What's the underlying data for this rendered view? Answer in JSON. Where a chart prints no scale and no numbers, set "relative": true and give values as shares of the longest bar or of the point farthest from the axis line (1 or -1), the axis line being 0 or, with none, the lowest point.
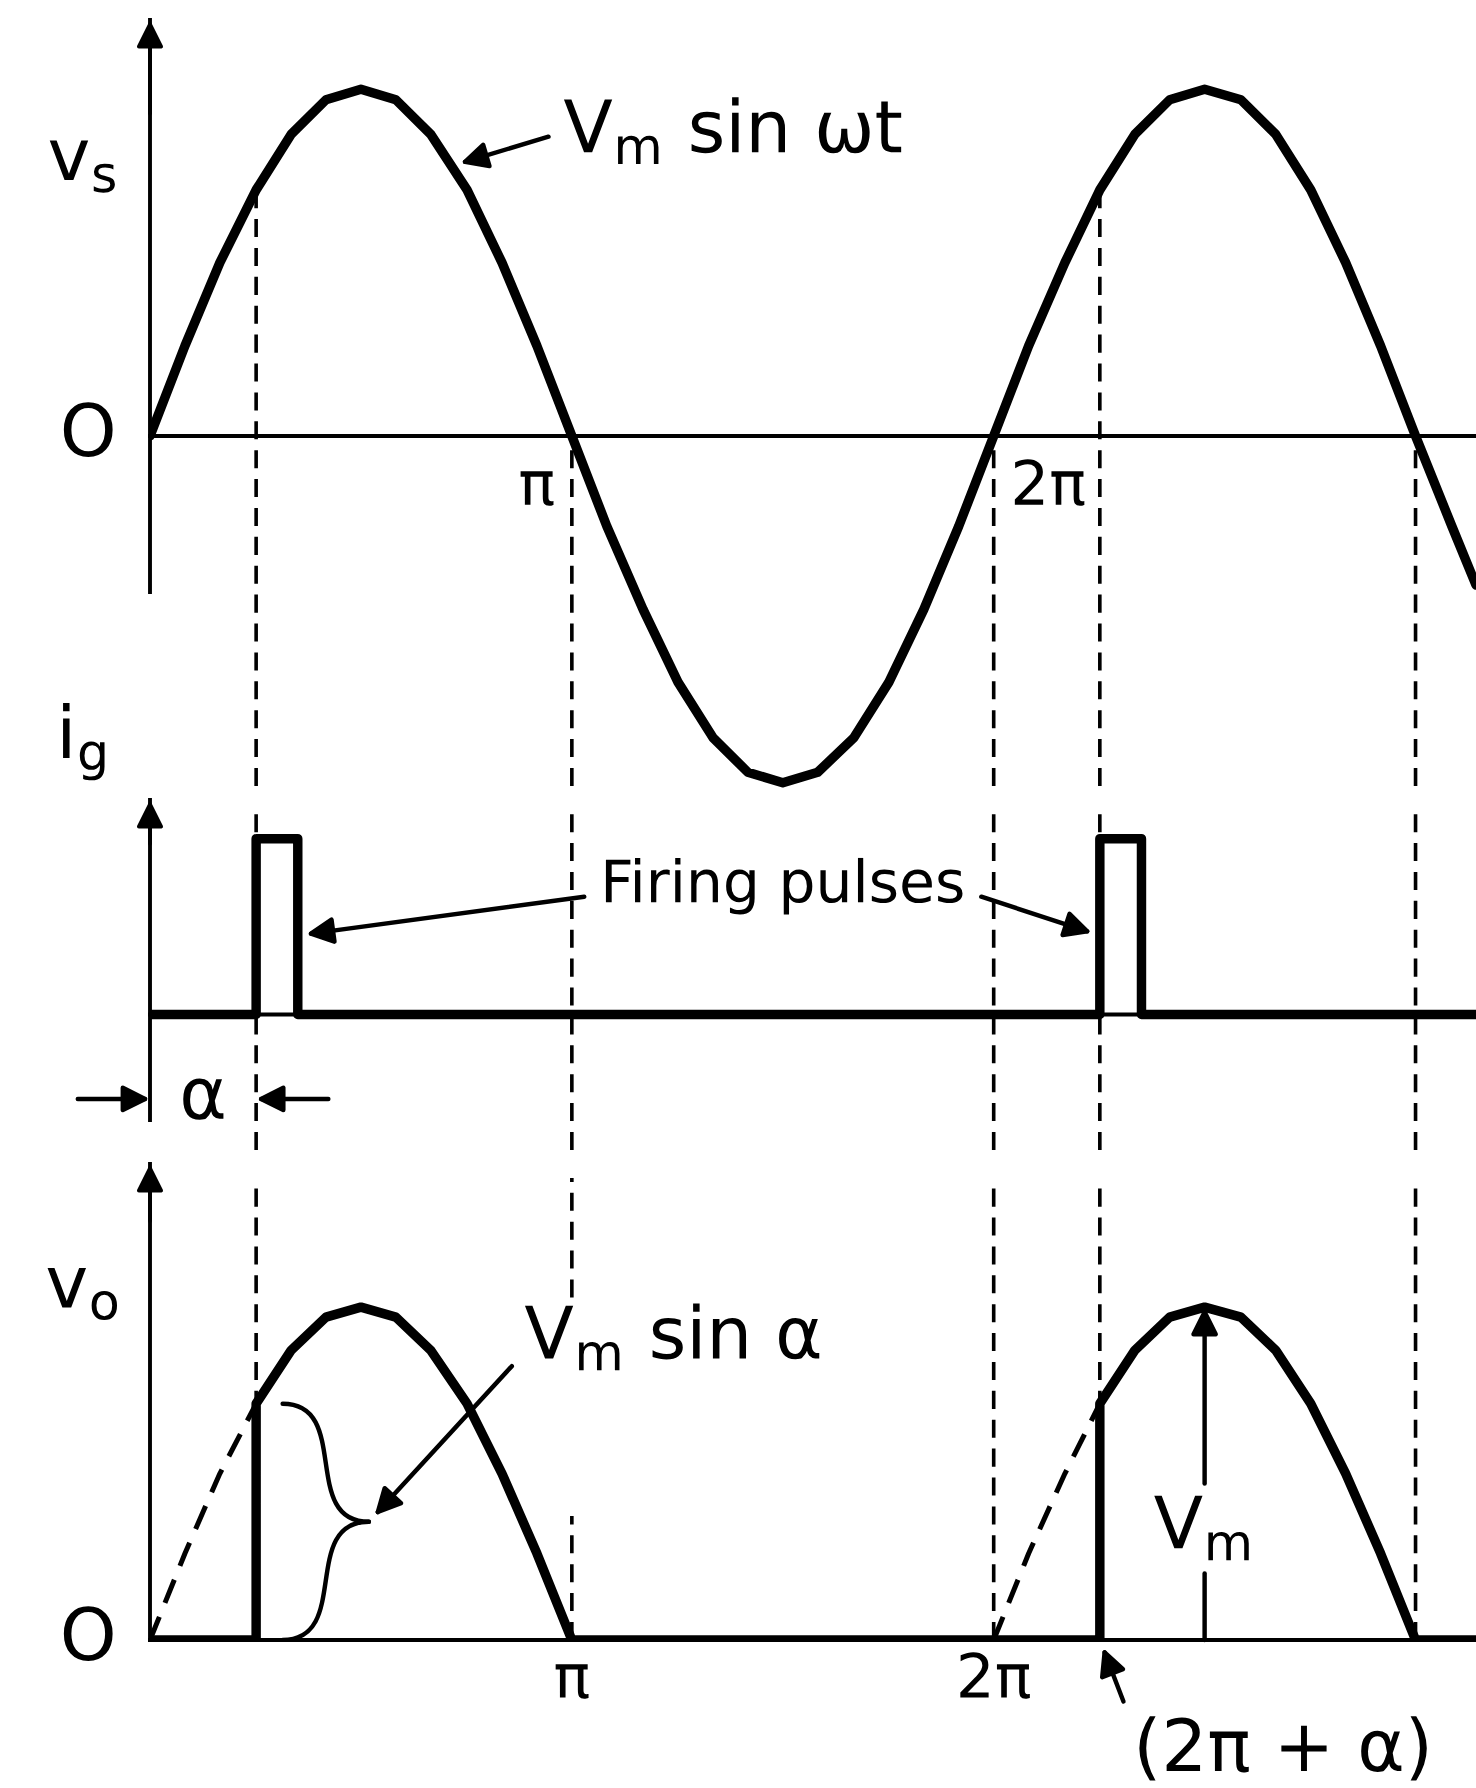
{
  "chart_data": [
    {
      "type": "line",
      "ylabel": "v$_{s}$",
      "relative": true,
      "xlim": [
        0,
        9.87
      ],
      "tick_labels": false,
      "series": [
        {
          "color": "#000000",
          "line_style": "solid",
          "x": [
            0,
            0.26,
            0.52,
            0.79,
            1.05,
            1.31,
            1.57,
            1.83,
            2.09,
            2.36,
            2.62,
            2.88,
            3.14,
            3.4,
            3.67,
            3.93,
            4.19,
            4.45,
            4.71,
            4.97,
            5.24,
            5.5,
            5.76,
            6.02,
            6.28,
            6.54,
            6.81,
            7.07,
            7.33,
            7.59,
            7.85,
            8.12,
            8.38,
            8.64,
            8.9,
            9.16,
            9.42,
            9.69,
            9.87
          ],
          "values": [
            0,
            0.26,
            0.5,
            0.71,
            0.87,
            0.97,
            1,
            0.97,
            0.87,
            0.71,
            0.5,
            0.26,
            0,
            -0.26,
            -0.5,
            -0.71,
            -0.87,
            -0.97,
            -1,
            -0.97,
            -0.87,
            -0.71,
            -0.5,
            -0.26,
            0,
            0.26,
            0.5,
            0.71,
            0.87,
            0.97,
            1,
            0.97,
            0.87,
            0.71,
            0.5,
            0.26,
            0,
            -0.26,
            -0.43
          ]
        }
      ],
      "ref_lines": [
        {
          "axis": "x",
          "value": 0.79,
          "color": "#000000",
          "line_style": "dashed"
        },
        {
          "axis": "x",
          "value": 3.14,
          "color": "#000000",
          "line_style": "dashed"
        },
        {
          "axis": "x",
          "value": 6.28,
          "color": "#000000",
          "line_style": "dashed"
        },
        {
          "axis": "x",
          "value": 7.07,
          "color": "#000000",
          "line_style": "dashed"
        },
        {
          "axis": "x",
          "value": 9.42,
          "color": "#000000",
          "line_style": "dashed"
        }
      ],
      "annotations": [
        "O",
        {
          "text": "V$_{m}$ sin ωt",
          "x": 2.25,
          "y": 0.78
        },
        {
          "text": "π",
          "x": 3.14,
          "y": 0
        },
        {
          "text": "2π",
          "x": 6.28,
          "y": 0
        }
      ]
    },
    {
      "type": "line",
      "ylabel": "i$_{g}$",
      "relative": true,
      "xlim": [
        0,
        9.87
      ],
      "tick_labels": false,
      "series": [
        {
          "color": "#000000",
          "line_style": "solid",
          "x": [
            0,
            0.79,
            0.79,
            1.1,
            1.1,
            7.07,
            7.07,
            7.38,
            7.38,
            9.87
          ],
          "values": [
            0,
            0,
            1,
            1,
            0,
            0,
            1,
            1,
            0,
            0
          ]
        }
      ],
      "ref_lines": [
        {
          "axis": "x",
          "value": 0.79,
          "color": "#000000",
          "line_style": "dashed"
        },
        {
          "axis": "x",
          "value": 3.14,
          "color": "#000000",
          "line_style": "dashed"
        },
        {
          "axis": "x",
          "value": 6.28,
          "color": "#000000",
          "line_style": "dashed"
        },
        {
          "axis": "x",
          "value": 7.07,
          "color": "#000000",
          "line_style": "dashed"
        },
        {
          "axis": "x",
          "value": 9.42,
          "color": "#000000",
          "line_style": "dashed"
        }
      ],
      "annotations": [
        "Firing pulses",
        {
          "text": "α",
          "x": 0.79,
          "y": 0
        }
      ]
    },
    {
      "type": "line",
      "ylabel": "v$_{o}$",
      "relative": true,
      "xlim": [
        0,
        9.87
      ],
      "xticks": [
        {
          "value": 3.14,
          "label": "π"
        },
        {
          "value": 6.28,
          "label": "2π"
        }
      ],
      "tick_labels": "x",
      "series": [
        {
          "color": "#000000",
          "line_style": "solid",
          "x": [
            0,
            0.79,
            0.79,
            1.05,
            1.31,
            1.57,
            1.83,
            2.09,
            2.36,
            2.62,
            2.88,
            3.14,
            7.07,
            7.07,
            7.33,
            7.59,
            7.85,
            8.12,
            8.38,
            8.64,
            8.9,
            9.16,
            9.42,
            9.87
          ],
          "values": [
            0,
            0,
            0.71,
            0.87,
            0.97,
            1,
            0.97,
            0.87,
            0.71,
            0.5,
            0.26,
            0,
            0,
            0.71,
            0.87,
            0.97,
            1,
            0.97,
            0.87,
            0.71,
            0.5,
            0.26,
            0,
            0
          ]
        },
        {
          "color": "#000000",
          "line_style": "dashed",
          "x": [
            0,
            0.26,
            0.52,
            0.79,
            3.14,
            6.28,
            6.54,
            6.81,
            7.07
          ],
          "values": [
            0,
            0.26,
            0.5,
            0.71,
            null,
            0,
            0.26,
            0.5,
            0.71
          ]
        }
      ],
      "ref_lines": [
        {
          "axis": "x",
          "value": 0.79,
          "color": "#000000",
          "line_style": "dashed"
        },
        {
          "axis": "x",
          "value": 3.14,
          "color": "#000000",
          "line_style": "dashed"
        },
        {
          "axis": "x",
          "value": 6.28,
          "color": "#000000",
          "line_style": "dashed"
        },
        {
          "axis": "x",
          "value": 7.07,
          "color": "#000000",
          "line_style": "dashed"
        },
        {
          "axis": "x",
          "value": 9.42,
          "color": "#000000",
          "line_style": "dashed"
        }
      ],
      "annotations": [
        "O",
        "V$_{m}$ sin α",
        {
          "text": "V$_{m}$",
          "x": 7.85,
          "y": 1
        },
        {
          "text": "(2π + α)",
          "x": 7.07,
          "y": 0
        }
      ]
    }
  ]
}
